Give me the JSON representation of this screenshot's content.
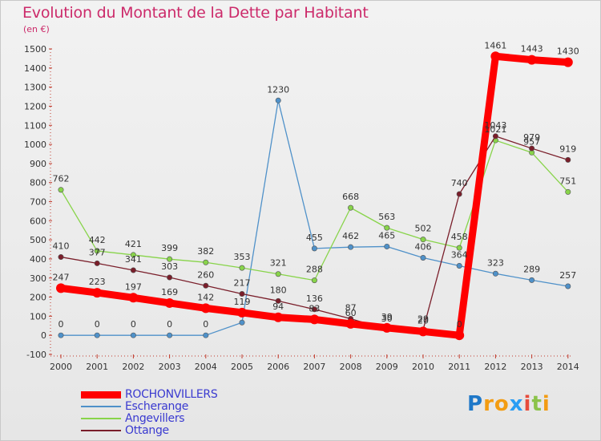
{
  "title": "Evolution du Montant de la Dette par Habitant",
  "subtitle": "(en €)",
  "logo_text": "Proxiti",
  "chart_data": {
    "type": "line",
    "title": "Evolution du Montant de la Dette par Habitant",
    "ylabel": "(en €)",
    "x": [
      "2000",
      "2001",
      "2002",
      "2003",
      "2004",
      "2005",
      "2006",
      "2007",
      "2008",
      "2009",
      "2010",
      "2011",
      "2012",
      "2013",
      "2014"
    ],
    "ylim": [
      -100,
      1500
    ],
    "yticks": [
      -100,
      0,
      100,
      200,
      300,
      400,
      500,
      600,
      700,
      800,
      900,
      1000,
      1100,
      1200,
      1300,
      1400,
      1500
    ],
    "grid": false,
    "legend_position": "bottom-left",
    "series": [
      {
        "name": "ROCHONVILLERS",
        "color": "#ff0000",
        "values": [
          247,
          223,
          197,
          169,
          142,
          119,
          94,
          83,
          60,
          39,
          20,
          0,
          1461,
          1443,
          1430
        ],
        "labels": [
          "247",
          "223",
          "197",
          "169",
          "142",
          "119",
          "94",
          "83",
          "60",
          "39",
          "20",
          "0",
          "1461",
          "1443",
          "1430"
        ]
      },
      {
        "name": "Escherange",
        "color": "#4f91c9",
        "values": [
          0,
          0,
          0,
          0,
          0,
          67,
          1230,
          455,
          462,
          465,
          406,
          364,
          323,
          289,
          257
        ],
        "labels": [
          "0",
          "0",
          "0",
          "0",
          "0",
          "",
          "1230",
          "455",
          "462",
          "465",
          "406",
          "364",
          "323",
          "289",
          "257"
        ]
      },
      {
        "name": "Angevillers",
        "color": "#88d44a",
        "values": [
          762,
          442,
          421,
          399,
          382,
          353,
          321,
          288,
          668,
          563,
          502,
          458,
          1021,
          957,
          751
        ],
        "labels": [
          "762",
          "442",
          "421",
          "399",
          "382",
          "353",
          "321",
          "288",
          "668",
          "563",
          "502",
          "458",
          "1021",
          "957",
          "751"
        ]
      },
      {
        "name": "Ottange",
        "color": "#7a1e2a",
        "values": [
          410,
          377,
          341,
          303,
          260,
          217,
          180,
          136,
          87,
          30,
          29,
          740,
          1043,
          979,
          919
        ],
        "labels": [
          "410",
          "377",
          "341",
          "303",
          "260",
          "217",
          "180",
          "136",
          "87",
          "30",
          "29",
          "740",
          "1043",
          "979",
          "919"
        ]
      }
    ]
  }
}
